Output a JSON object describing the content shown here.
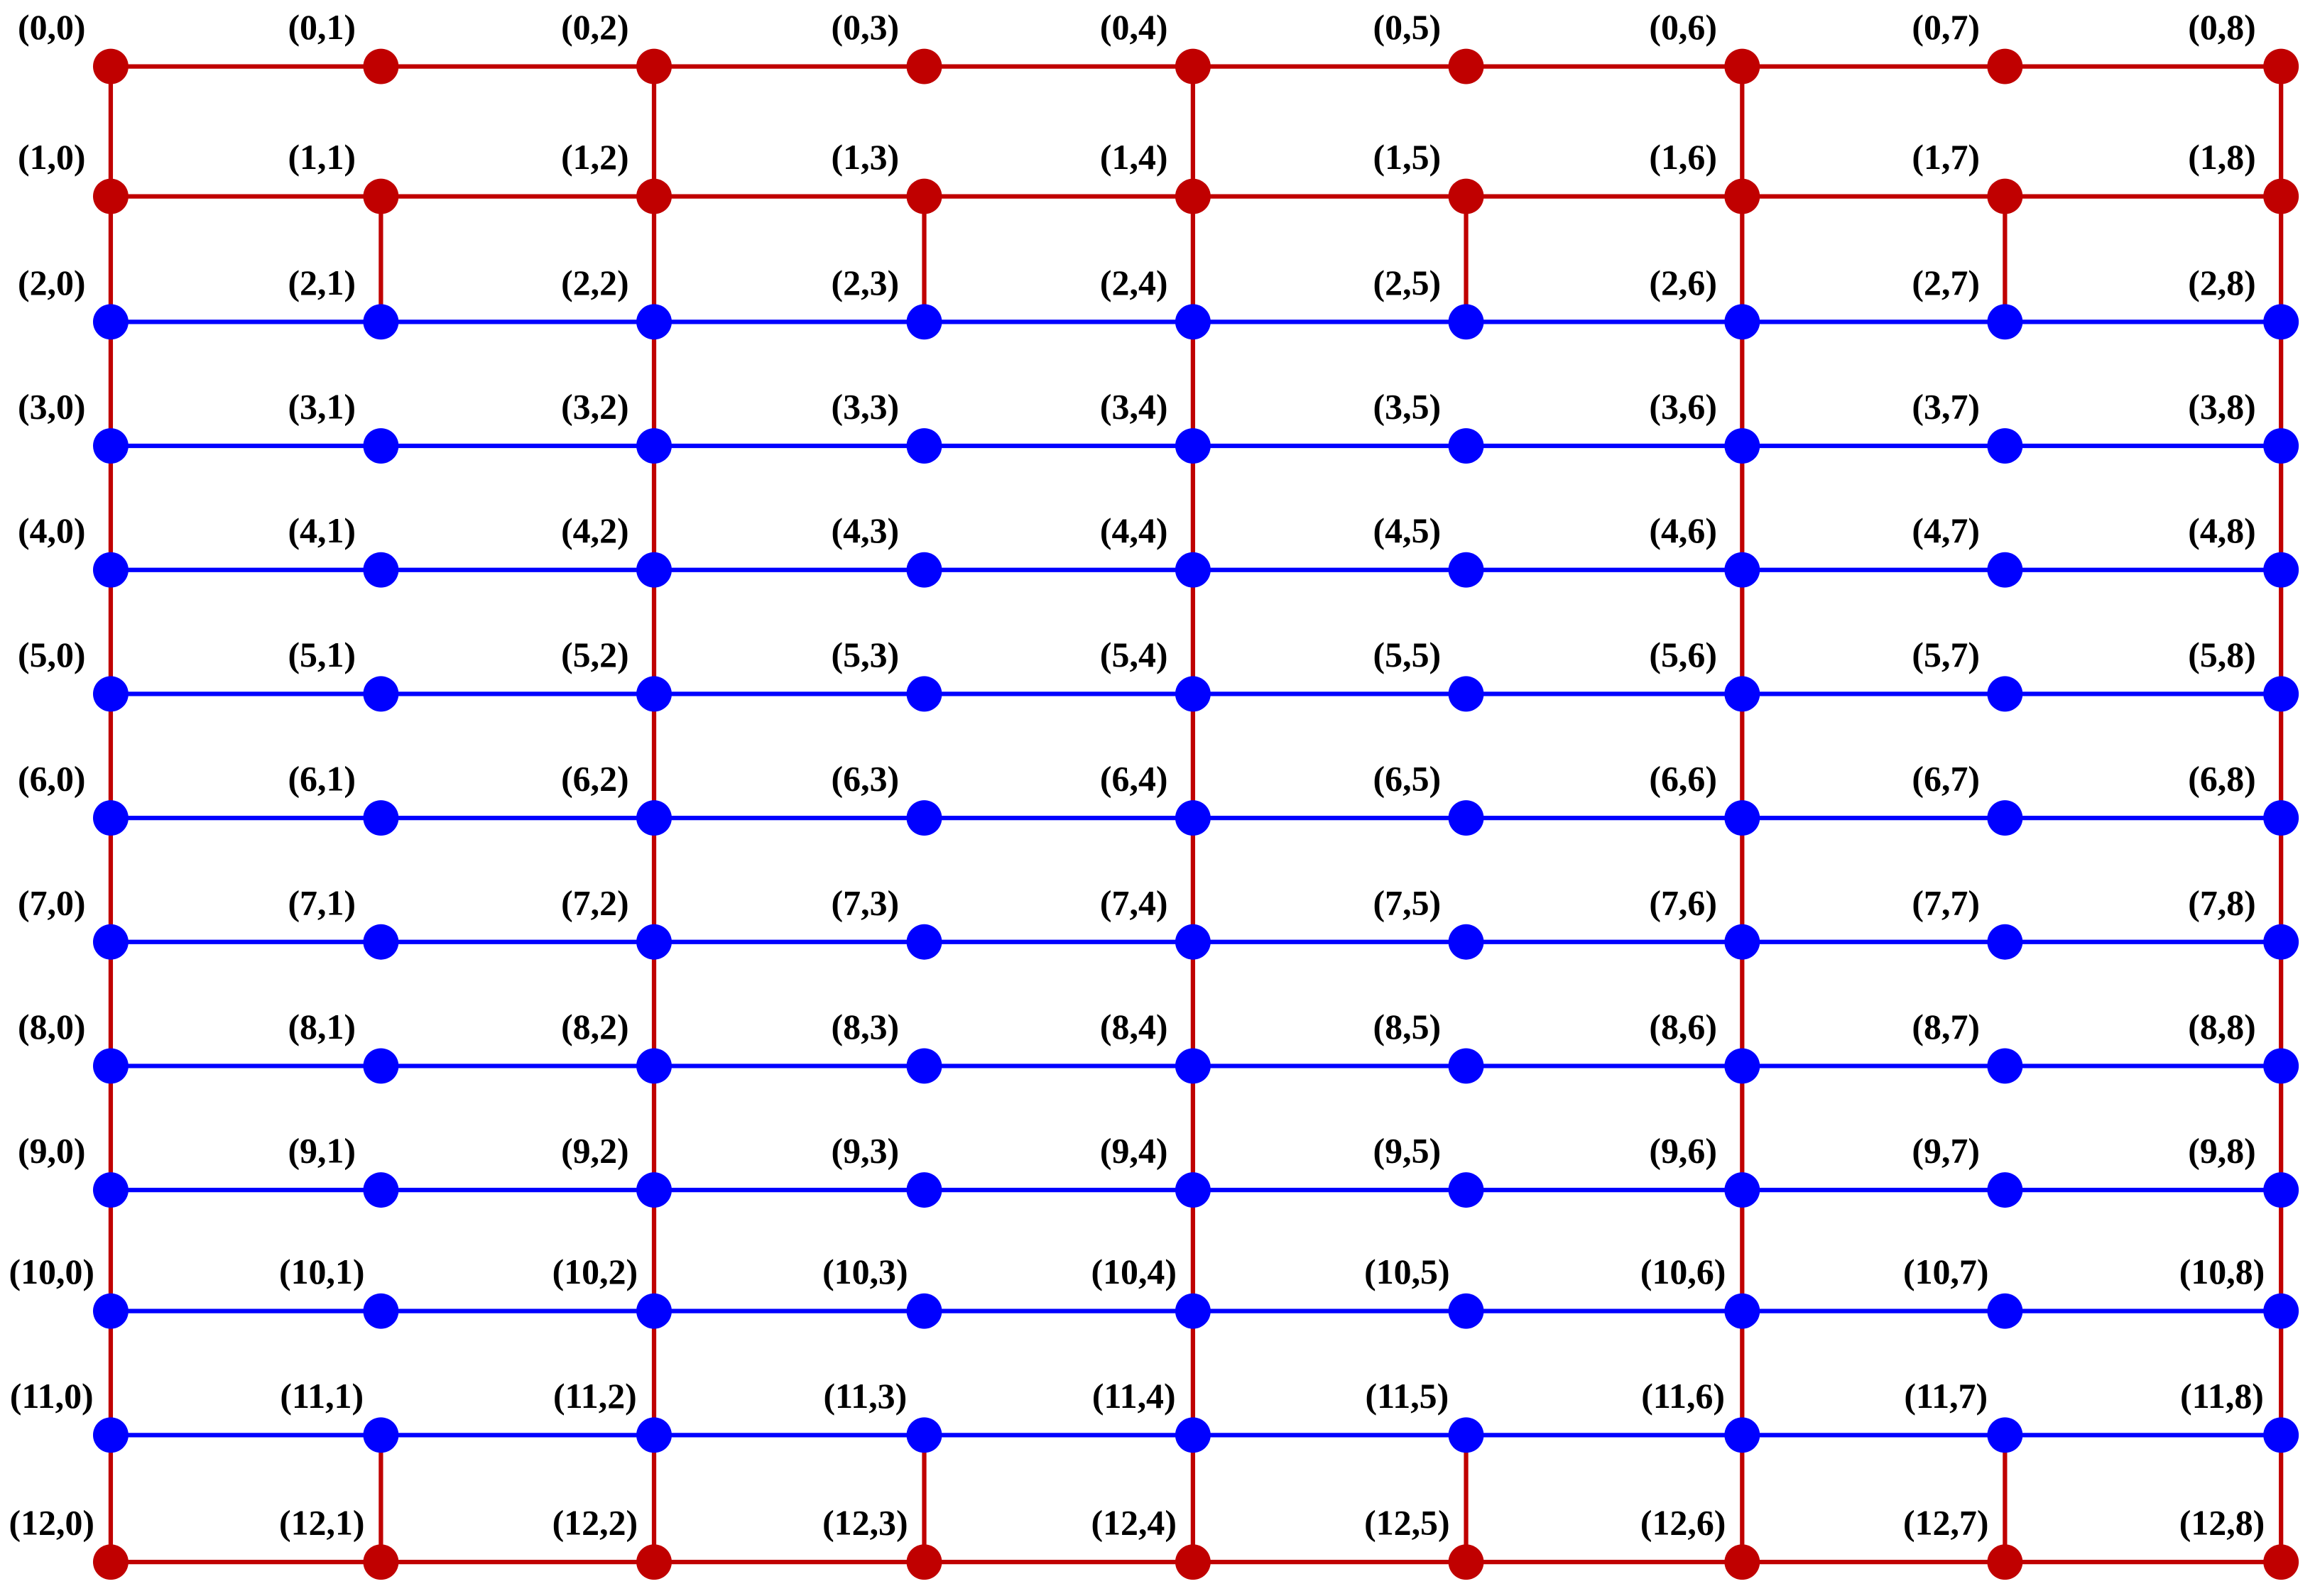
{
  "grid": {
    "rows": [
      {
        "color": "#c00000",
        "labels": [
          "(0,0)",
          "(0,1)",
          "(0,2)",
          "(0,3)",
          "(0,4)",
          "(0,5)",
          "(0,6)",
          "(0,7)",
          "(0,8)"
        ]
      },
      {
        "color": "#c00000",
        "labels": [
          "(1,0)",
          "(1,1)",
          "(1,2)",
          "(1,3)",
          "(1,4)",
          "(1,5)",
          "(1,6)",
          "(1,7)",
          "(1,8)"
        ]
      },
      {
        "color": "#0000ff",
        "labels": [
          "(2,0)",
          "(2,1)",
          "(2,2)",
          "(2,3)",
          "(2,4)",
          "(2,5)",
          "(2,6)",
          "(2,7)",
          "(2,8)"
        ]
      },
      {
        "color": "#0000ff",
        "labels": [
          "(3,0)",
          "(3,1)",
          "(3,2)",
          "(3,3)",
          "(3,4)",
          "(3,5)",
          "(3,6)",
          "(3,7)",
          "(3,8)"
        ]
      },
      {
        "color": "#0000ff",
        "labels": [
          "(4,0)",
          "(4,1)",
          "(4,2)",
          "(4,3)",
          "(4,4)",
          "(4,5)",
          "(4,6)",
          "(4,7)",
          "(4,8)"
        ]
      },
      {
        "color": "#0000ff",
        "labels": [
          "(5,0)",
          "(5,1)",
          "(5,2)",
          "(5,3)",
          "(5,4)",
          "(5,5)",
          "(5,6)",
          "(5,7)",
          "(5,8)"
        ]
      },
      {
        "color": "#0000ff",
        "labels": [
          "(6,0)",
          "(6,1)",
          "(6,2)",
          "(6,3)",
          "(6,4)",
          "(6,5)",
          "(6,6)",
          "(6,7)",
          "(6,8)"
        ]
      },
      {
        "color": "#0000ff",
        "labels": [
          "(7,0)",
          "(7,1)",
          "(7,2)",
          "(7,3)",
          "(7,4)",
          "(7,5)",
          "(7,6)",
          "(7,7)",
          "(7,8)"
        ]
      },
      {
        "color": "#0000ff",
        "labels": [
          "(8,0)",
          "(8,1)",
          "(8,2)",
          "(8,3)",
          "(8,4)",
          "(8,5)",
          "(8,6)",
          "(8,7)",
          "(8,8)"
        ]
      },
      {
        "color": "#0000ff",
        "labels": [
          "(9,0)",
          "(9,1)",
          "(9,2)",
          "(9,3)",
          "(9,4)",
          "(9,5)",
          "(9,6)",
          "(9,7)",
          "(9,8)"
        ]
      },
      {
        "color": "#0000ff",
        "labels": [
          "(10,0)",
          "(10,1)",
          "(10,2)",
          "(10,3)",
          "(10,4)",
          "(10,5)",
          "(10,6)",
          "(10,7)",
          "(10,8)"
        ]
      },
      {
        "color": "#0000ff",
        "labels": [
          "(11,0)",
          "(11,1)",
          "(11,2)",
          "(11,3)",
          "(11,4)",
          "(11,5)",
          "(11,6)",
          "(11,7)",
          "(11,8)"
        ]
      },
      {
        "color": "#c00000",
        "labels": [
          "(12,0)",
          "(12,1)",
          "(12,2)",
          "(12,3)",
          "(12,4)",
          "(12,5)",
          "(12,6)",
          "(12,7)",
          "(12,8)"
        ]
      }
    ],
    "link_color": "#c00000"
  }
}
